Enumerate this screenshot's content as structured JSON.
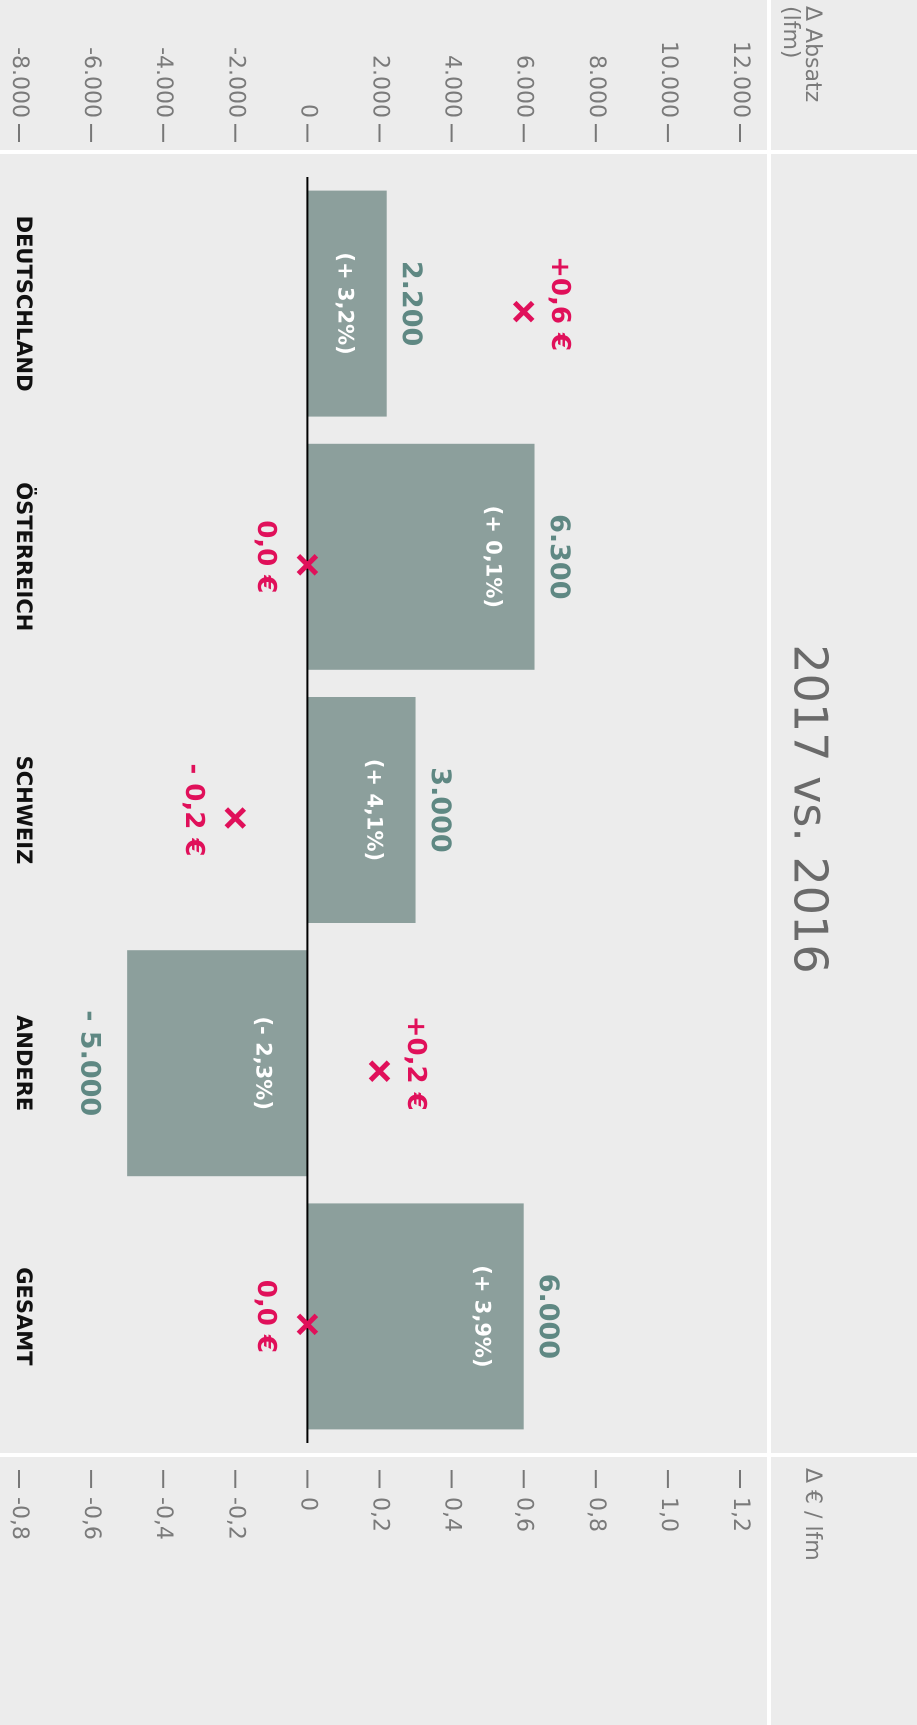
{
  "chart_data": {
    "type": "bar",
    "title": "2017 vs. 2016",
    "y_label": [
      "Δ Absatz",
      "(lfm)"
    ],
    "y2_label": "Δ € / lfm",
    "categories": [
      "DEUTSCHLAND",
      "ÖSTERREICH",
      "SCHWEIZ",
      "ANDERE",
      "GESAMT"
    ],
    "series": [
      {
        "type": "bar",
        "color": "#8c9f9c",
        "values": [
          2200,
          6300,
          3000,
          -5000,
          6000
        ],
        "value_labels": [
          "2.200",
          "6.300",
          "3.000",
          "- 5.000",
          "6.000"
        ],
        "pct_labels": [
          "(+ 3,2%)",
          "(+ 0,1%)",
          "(+ 4,1%)",
          "(- 2,3%)",
          "(+ 3,9%)"
        ]
      },
      {
        "type": "cross",
        "axis": "y2",
        "color": "#e0105a",
        "values": [
          0.6,
          0,
          -0.2,
          0.2,
          0
        ],
        "value_labels": [
          "+0,6 €",
          "0,0 €",
          "- 0,2 €",
          "+0,2 €",
          "0,0 €"
        ]
      }
    ],
    "ylim": [
      -8000,
      12000
    ],
    "yticks": [
      {
        "value": -8000,
        "label": "-8.000"
      },
      {
        "value": -6000,
        "label": "-6.000"
      },
      {
        "value": -4000,
        "label": "-4.000"
      },
      {
        "value": -2000,
        "label": "-2.000"
      },
      0,
      {
        "value": 2000,
        "label": "2.000"
      },
      {
        "value": 4000,
        "label": "4.000"
      },
      {
        "value": 6000,
        "label": "6.000"
      },
      {
        "value": 8000,
        "label": "8.000"
      },
      {
        "value": 10000,
        "label": "10.000"
      },
      {
        "value": 12000,
        "label": "12.000"
      }
    ],
    "y2lim": [
      -0.8,
      1.2
    ],
    "y2ticks": [
      {
        "value": -0.8,
        "label": "-0,8"
      },
      {
        "value": -0.6,
        "label": "-0,6"
      },
      {
        "value": -0.4,
        "label": "-0,4"
      },
      {
        "value": -0.2,
        "label": "-0,2"
      },
      0,
      {
        "value": 0.2,
        "label": "0,2"
      },
      {
        "value": 0.4,
        "label": "0,4"
      },
      {
        "value": 0.6,
        "label": "0,6"
      },
      {
        "value": 0.8,
        "label": "0,8"
      },
      {
        "value": 1.0,
        "label": "1,0"
      },
      {
        "value": 1.2,
        "label": "1,2"
      }
    ]
  }
}
